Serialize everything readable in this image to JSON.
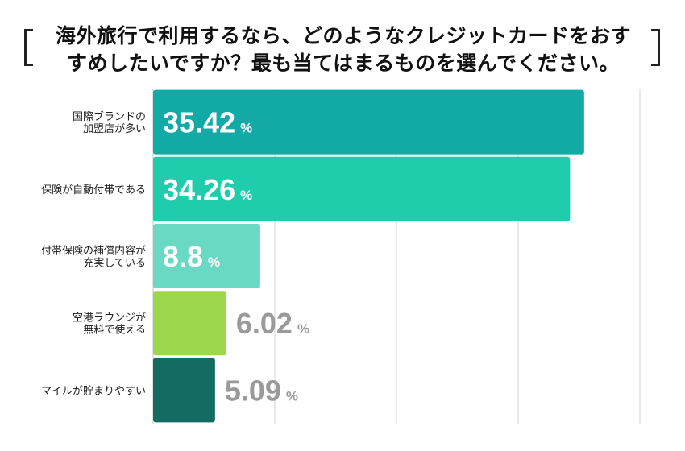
{
  "title": {
    "line1": "海外旅行で利用するなら、どのようなクレジットカードをおす",
    "line2": "すめしたいですか？最も当てはまるものを選んでください。"
  },
  "chart_data": {
    "type": "bar",
    "orientation": "horizontal",
    "title": "海外旅行で利用するなら、どのようなクレジットカードをおすすめしたいですか？最も当てはまるものを選んでください。",
    "unit": "%",
    "xlim": [
      0,
      40
    ],
    "grid": true,
    "categories": [
      [
        "国際ブランドの",
        "加盟店が多い"
      ],
      [
        "保険が自動付帯である"
      ],
      [
        "付帯保険の補償内容が",
        "充実している"
      ],
      [
        "空港ラウンジが",
        "無料で使える"
      ],
      [
        "マイルが貯まりやすい"
      ]
    ],
    "values": [
      35.42,
      34.26,
      8.8,
      6.02,
      5.09
    ],
    "value_labels": [
      "35.42",
      "34.26",
      "8.8",
      "6.02",
      "5.09"
    ],
    "colors": [
      "#12A9A7",
      "#1FCCAB",
      "#6AD9C3",
      "#9CD74E",
      "#136B62"
    ],
    "label_text_color": "#ffffff",
    "outside_label_color": "#9a9a9a"
  }
}
